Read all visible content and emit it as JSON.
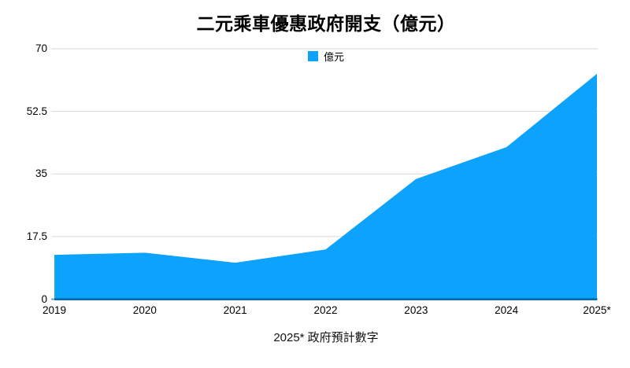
{
  "title": "二元乘車優惠政府開支（億元）",
  "legend": {
    "label": "億元",
    "swatch_color": "#0da2fc"
  },
  "footnote": "2025* 政府預計數字",
  "colors": {
    "area": "#0da2fc",
    "gridline": "#d9d9d9",
    "baseline": "rgba(0,0,0,0.42)",
    "text": "#000000"
  },
  "chart_data": {
    "type": "area",
    "title": "二元乘車優惠政府開支（億元）",
    "categories": [
      "2019",
      "2020",
      "2021",
      "2022",
      "2023",
      "2024",
      "2025*"
    ],
    "series": [
      {
        "name": "億元",
        "values": [
          12.4,
          13,
          10.2,
          13.9,
          33.6,
          42.5,
          63
        ]
      }
    ],
    "xlabel": "",
    "ylabel": "",
    "ylim": [
      0,
      70
    ],
    "yticks": [
      0,
      17.5,
      35,
      52.5,
      70
    ],
    "ytick_labels": [
      "0",
      "17.5",
      "35",
      "52.5",
      "70"
    ],
    "grid": true,
    "legend_position": "top-center",
    "annotation": "2025* 政府預計數字"
  }
}
